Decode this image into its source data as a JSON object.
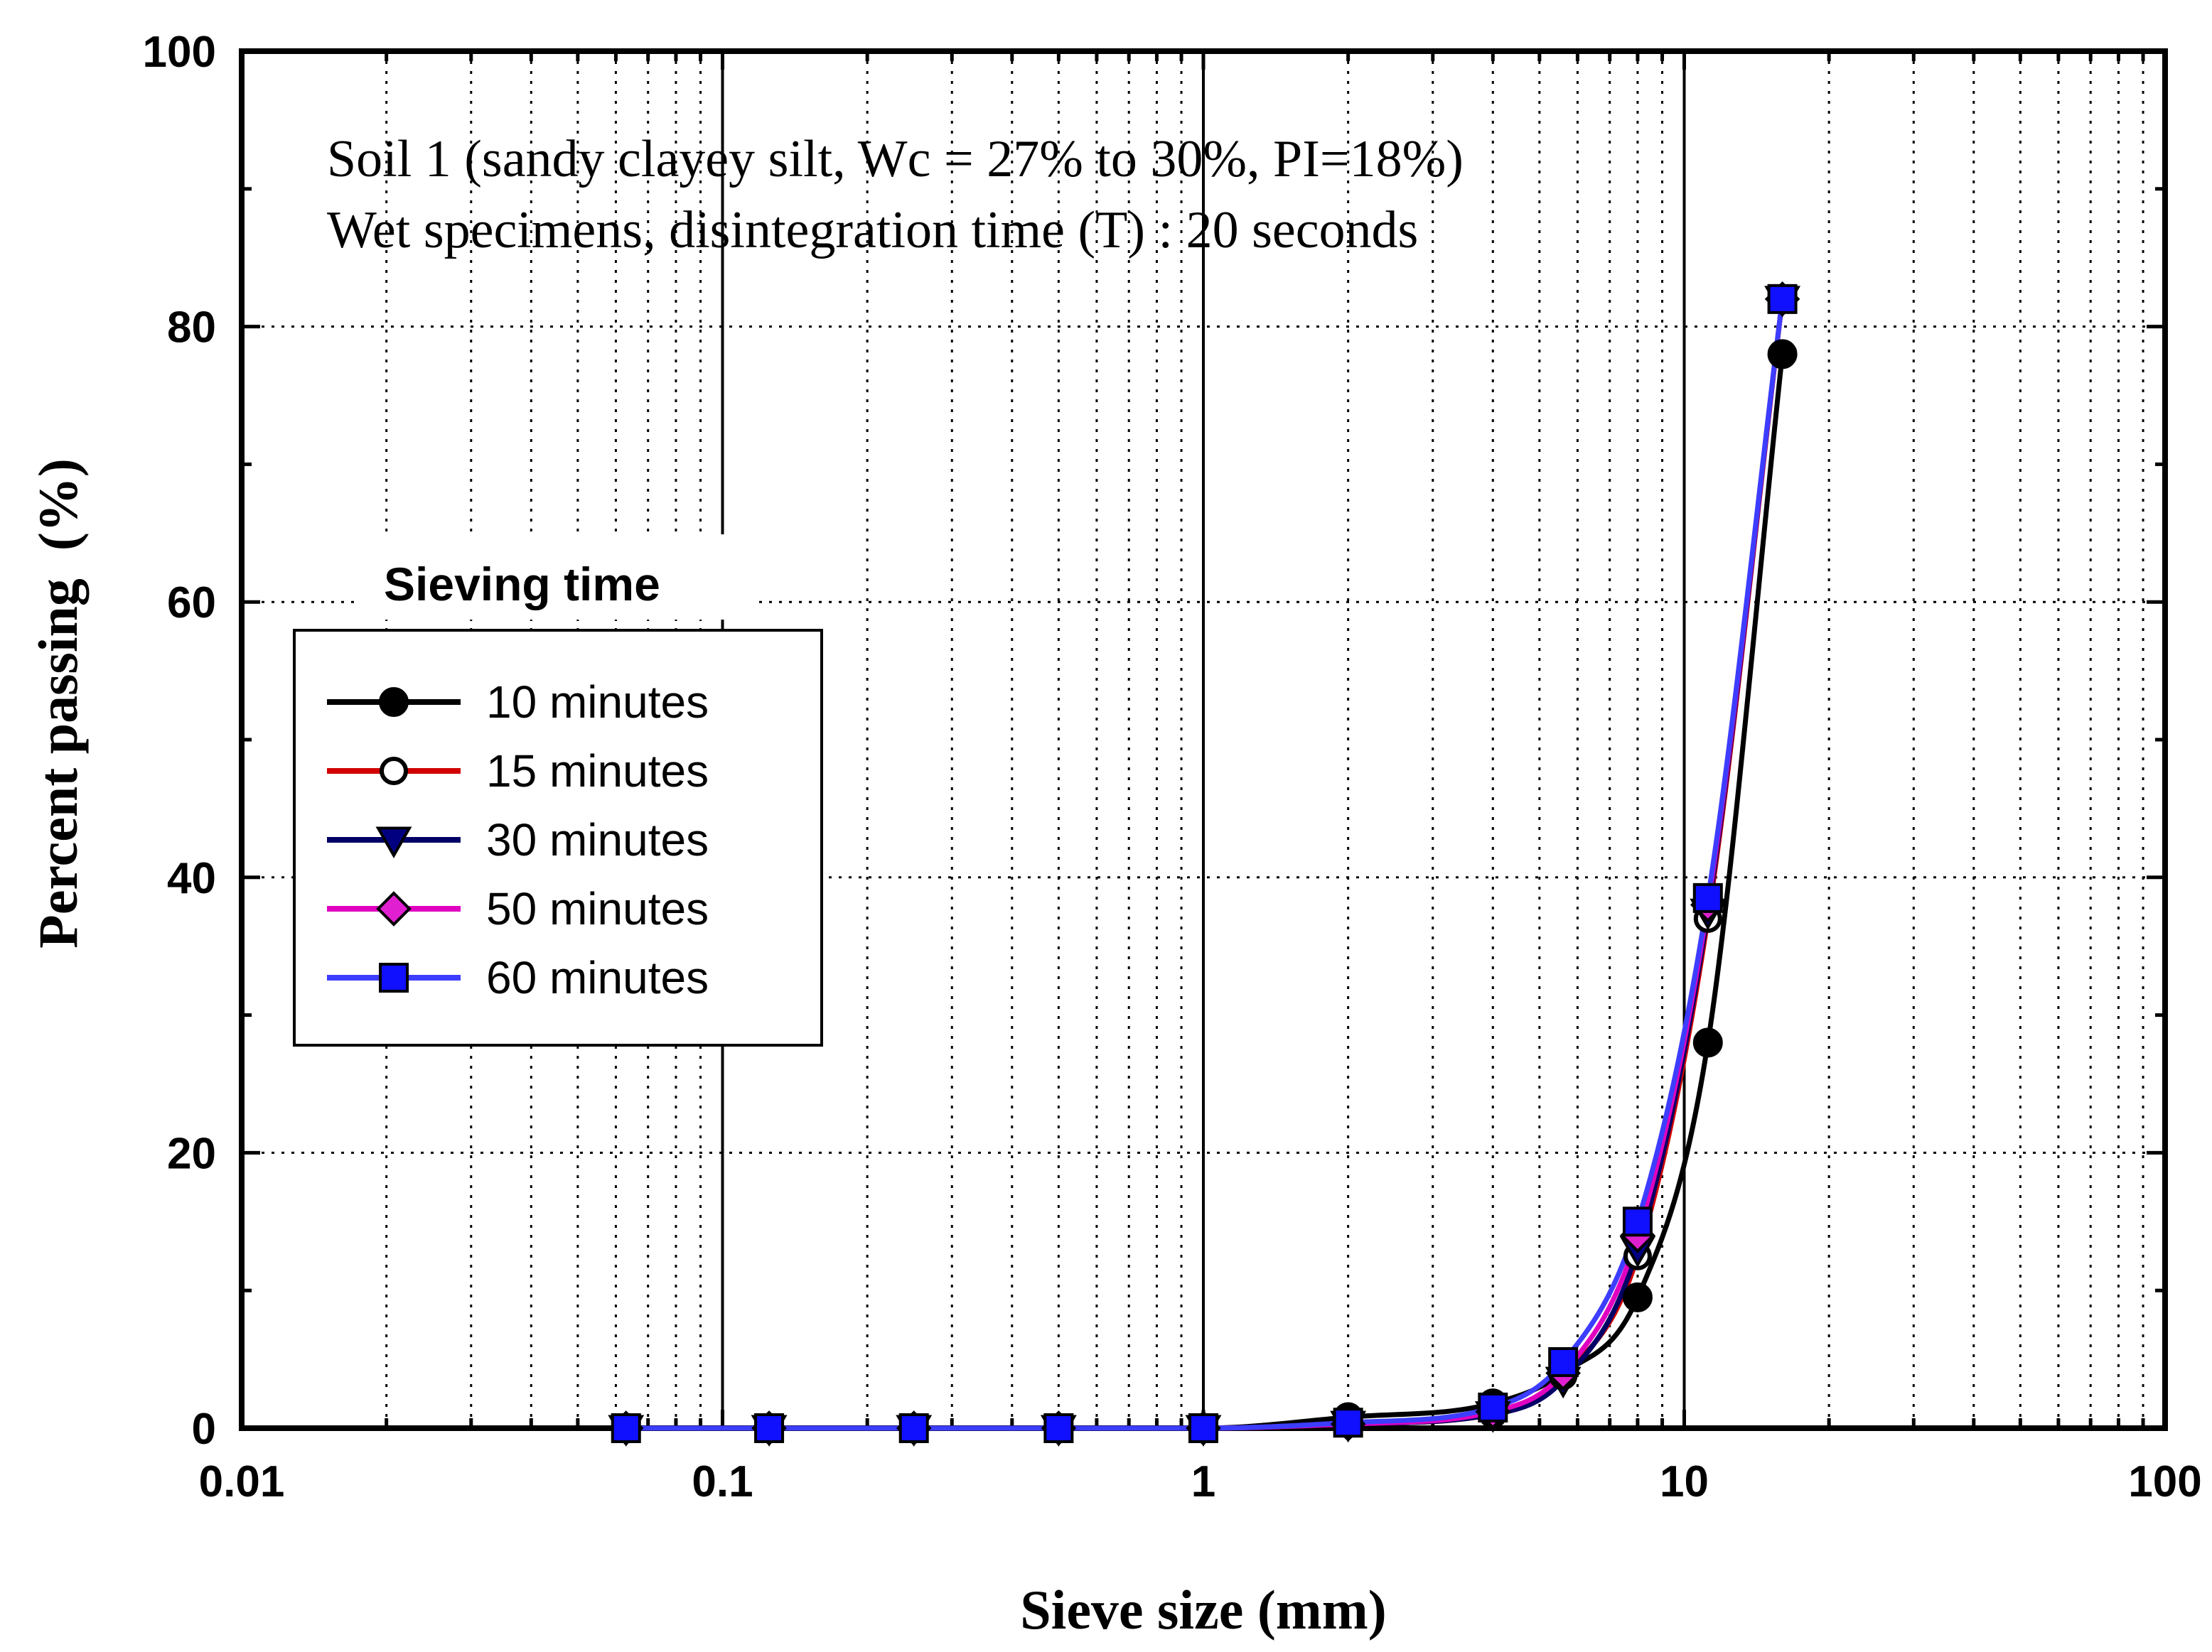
{
  "chart_data": {
    "type": "line",
    "title_lines": [
      "Soil 1 (sandy clayey silt, Wc = 27% to 30%, PI=18%)",
      "Wet specimens, disintegration time (T) : 20 seconds"
    ],
    "xlabel": "Sieve size (mm)",
    "ylabel": "Percent passing  (%)",
    "xscale": "log",
    "xlim": [
      0.01,
      100
    ],
    "ylim": [
      0,
      100
    ],
    "xticks": [
      0.01,
      0.1,
      1,
      10,
      100
    ],
    "xtick_labels": [
      "0.01",
      "0.1",
      "1",
      "10",
      "100"
    ],
    "yticks": [
      0,
      20,
      40,
      60,
      80,
      100
    ],
    "ytick_labels": [
      "0",
      "20",
      "40",
      "60",
      "80",
      "100"
    ],
    "grid": true,
    "legend_title": "Sieving time",
    "legend_position": "middle-left",
    "x": [
      0.063,
      0.125,
      0.25,
      0.5,
      1,
      2,
      4,
      5.6,
      8,
      11.2,
      16
    ],
    "series": [
      {
        "name": "10 minutes",
        "color": "#000000",
        "marker": "circle-filled",
        "marker_fill": "#000000",
        "values": [
          0,
          0,
          0,
          0,
          0,
          0.8,
          1.8,
          4.0,
          9.5,
          28.0,
          78.0
        ]
      },
      {
        "name": "15 minutes",
        "color": "#d00000",
        "marker": "circle-open",
        "marker_fill": "#ffffff",
        "values": [
          0,
          0,
          0,
          0,
          0,
          0.3,
          1.0,
          3.8,
          12.5,
          37.0,
          82.0
        ]
      },
      {
        "name": "30 minutes",
        "color": "#000066",
        "marker": "triangle-down",
        "marker_fill": "#000080",
        "values": [
          0,
          0,
          0,
          0,
          0,
          0.3,
          1.0,
          3.5,
          13.0,
          37.5,
          82.0
        ]
      },
      {
        "name": "50 minutes",
        "color": "#e000c0",
        "marker": "diamond",
        "marker_fill": "#e020d0",
        "values": [
          0,
          0,
          0,
          0,
          0,
          0.3,
          1.2,
          4.0,
          14.0,
          38.0,
          82.0
        ]
      },
      {
        "name": "60 minutes",
        "color": "#3d3dff",
        "marker": "square",
        "marker_fill": "#1010ff",
        "values": [
          0,
          0,
          0,
          0,
          0,
          0.4,
          1.5,
          4.8,
          15.0,
          38.5,
          82.0
        ]
      }
    ]
  }
}
